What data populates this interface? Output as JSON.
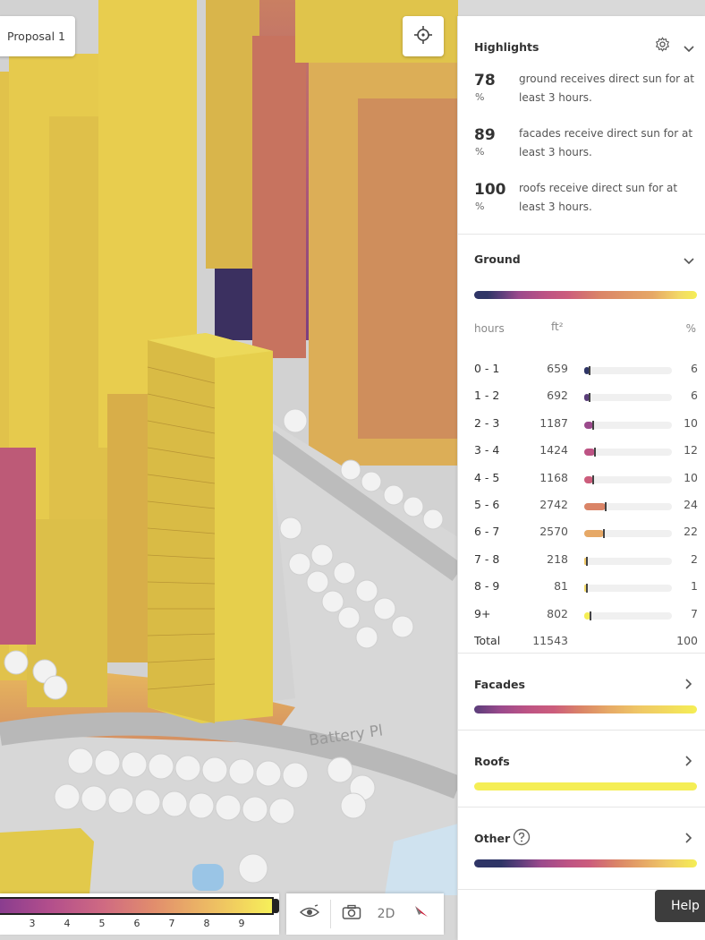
{
  "scene": {
    "proposal_label": "Proposal 1",
    "street_label": "Battery Pl"
  },
  "legend": {
    "ticks": [
      "3",
      "4",
      "5",
      "6",
      "7",
      "8",
      "9"
    ]
  },
  "toolbar": {
    "eye_icon": "eye-icon",
    "camera_icon": "camera-icon",
    "mode_label": "2D",
    "compass_icon": "compass-icon"
  },
  "panel": {
    "highlights": {
      "title": "Highlights",
      "items": [
        {
          "value": "78",
          "unit": "%",
          "text": "ground receives direct sun for at least 3 hours."
        },
        {
          "value": "89",
          "unit": "%",
          "text": "facades receive direct sun for at least 3 hours."
        },
        {
          "value": "100",
          "unit": "%",
          "text": "roofs receive direct sun for at least 3 hours."
        }
      ]
    },
    "ground": {
      "title": "Ground",
      "header": {
        "hours": "hours",
        "area": "ft²",
        "pct": "%"
      },
      "rows": [
        {
          "hours": "0 - 1",
          "area": "659",
          "pct": "6",
          "percent": 6,
          "color": "#2f3566"
        },
        {
          "hours": "1 - 2",
          "area": "692",
          "pct": "6",
          "percent": 6,
          "color": "#5a3d7a"
        },
        {
          "hours": "2 - 3",
          "area": "1187",
          "pct": "10",
          "percent": 10,
          "color": "#9b4a8c"
        },
        {
          "hours": "3 - 4",
          "area": "1424",
          "pct": "12",
          "percent": 12,
          "color": "#bd5384"
        },
        {
          "hours": "4 - 5",
          "area": "1168",
          "pct": "10",
          "percent": 10,
          "color": "#cc5d7c"
        },
        {
          "hours": "5 - 6",
          "area": "2742",
          "pct": "24",
          "percent": 24,
          "color": "#da8467"
        },
        {
          "hours": "6 - 7",
          "area": "2570",
          "pct": "22",
          "percent": 22,
          "color": "#e6a866"
        },
        {
          "hours": "7 - 8",
          "area": "218",
          "pct": "2",
          "percent": 2,
          "color": "#efc766"
        },
        {
          "hours": "8 - 9",
          "area": "81",
          "pct": "1",
          "percent": 1,
          "color": "#f2d966"
        },
        {
          "hours": "9+",
          "area": "802",
          "pct": "7",
          "percent": 7,
          "color": "#f5ee55"
        }
      ],
      "total": {
        "label": "Total",
        "area": "11543",
        "pct": "100"
      }
    },
    "facades": {
      "title": "Facades"
    },
    "roofs": {
      "title": "Roofs"
    },
    "other": {
      "title": "Other"
    }
  },
  "help_label": "Help",
  "colors": {
    "accent_yellow": "#e8d24a",
    "panel_bg": "#ffffff"
  }
}
